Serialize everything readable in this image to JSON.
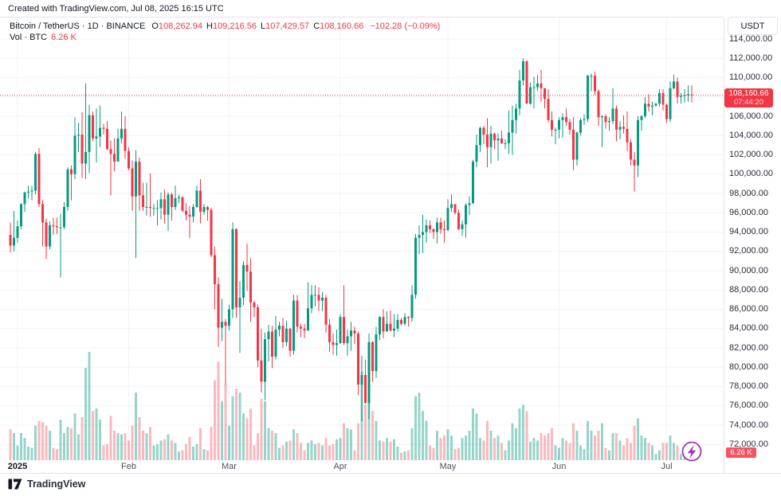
{
  "header": {
    "created_note": "Created with TradingView.com, Jul 08, 2025 16:15 UTC"
  },
  "legend": {
    "symbol_line": "Bitcoin / TetherUS · 1D · BINANCE",
    "open": {
      "label": "O",
      "value": "108,262.94"
    },
    "high": {
      "label": "H",
      "value": "109,216.56"
    },
    "low": {
      "label": "L",
      "value": "107,429.57"
    },
    "close": {
      "label": "C",
      "value": "108,160.66"
    },
    "change": "−102.28 (−0.09%)",
    "volume": {
      "label": "Vol · BTC",
      "value": "6.26 K"
    }
  },
  "price_axis": {
    "currency": "USDT"
  },
  "price_badge": {
    "price": "108,160.66",
    "countdown": "07:44:20"
  },
  "volume_badge": {
    "value": "6.26 K"
  },
  "footer": {
    "brand": "TradingView"
  },
  "colors": {
    "up": "#089981",
    "down": "#f23645",
    "vol_up": "rgba(8,153,129,0.42)",
    "vol_down": "rgba(242,54,69,0.35)",
    "grid": "#f0f3fa",
    "border": "#e0e3eb",
    "boost": "#9c36b5"
  },
  "chart_data": {
    "type": "candlestick",
    "title": "Bitcoin / TetherUS",
    "interval": "1D",
    "exchange": "BINANCE",
    "currency": "USDT",
    "start_date": "2024-12-30",
    "end_date": "2025-07-08",
    "current_price": 108160.66,
    "current": {
      "open": 108262.94,
      "high": 109216.56,
      "low": 107429.57,
      "close": 108160.66,
      "change": -102.28,
      "change_pct": -0.09,
      "volume_kbtc": 6.26
    },
    "price_axis": {
      "max": 114000,
      "min": 72000,
      "step": 2000
    },
    "time_ticks": [
      {
        "label": "2025",
        "index": 2,
        "bold": true
      },
      {
        "label": "Feb",
        "index": 33
      },
      {
        "label": "Mar",
        "index": 61
      },
      {
        "label": "Apr",
        "index": 92
      },
      {
        "label": "May",
        "index": 122
      },
      {
        "label": "Jun",
        "index": 153
      },
      {
        "label": "Jul",
        "index": 183
      }
    ],
    "units": {
      "price": "thousand USDT",
      "volume": "K BTC"
    },
    "candles": [
      [
        93.7,
        95.0,
        91.9,
        92.6,
        25
      ],
      [
        92.6,
        96.2,
        92.0,
        93.4,
        22
      ],
      [
        93.4,
        95.2,
        92.9,
        94.6,
        12
      ],
      [
        94.6,
        97.0,
        94.3,
        96.9,
        22
      ],
      [
        96.9,
        98.2,
        96.1,
        98.1,
        18
      ],
      [
        98.1,
        98.8,
        97.5,
        98.2,
        11
      ],
      [
        98.2,
        98.8,
        97.3,
        98.3,
        10
      ],
      [
        98.3,
        102.3,
        97.9,
        102.1,
        28
      ],
      [
        102.1,
        102.7,
        96.6,
        96.9,
        32
      ],
      [
        96.9,
        97.3,
        92.5,
        95.0,
        31
      ],
      [
        95.0,
        95.4,
        91.2,
        92.5,
        28
      ],
      [
        92.5,
        95.1,
        92.2,
        94.7,
        24
      ],
      [
        94.7,
        95.5,
        93.7,
        94.6,
        10
      ],
      [
        94.6,
        95.5,
        93.8,
        94.5,
        9
      ],
      [
        94.5,
        95.9,
        89.3,
        94.5,
        33
      ],
      [
        94.5,
        97.1,
        94.3,
        96.6,
        22
      ],
      [
        96.6,
        100.7,
        96.2,
        100.5,
        27
      ],
      [
        100.5,
        100.9,
        97.3,
        100.0,
        26
      ],
      [
        100.0,
        105.9,
        99.5,
        104.0,
        38
      ],
      [
        104.0,
        105.3,
        102.3,
        104.1,
        21
      ],
      [
        104.1,
        106.4,
        99.6,
        101.1,
        35
      ],
      [
        101.1,
        109.4,
        99.5,
        102.3,
        75
      ],
      [
        102.3,
        107.2,
        100.1,
        106.1,
        88
      ],
      [
        106.1,
        106.5,
        103.4,
        103.7,
        40
      ],
      [
        103.7,
        106.8,
        101.2,
        103.9,
        42
      ],
      [
        103.9,
        107.1,
        102.8,
        104.8,
        33
      ],
      [
        104.8,
        105.2,
        104.1,
        104.7,
        12
      ],
      [
        104.7,
        105.5,
        102.5,
        102.6,
        13
      ],
      [
        102.6,
        103.5,
        97.8,
        102.1,
        36
      ],
      [
        102.1,
        103.7,
        100.3,
        101.3,
        24
      ],
      [
        101.3,
        104.7,
        101.3,
        103.7,
        22
      ],
      [
        103.7,
        106.5,
        103.2,
        104.7,
        21
      ],
      [
        104.7,
        106.0,
        101.6,
        102.4,
        22
      ],
      [
        102.4,
        102.8,
        100.4,
        100.6,
        16
      ],
      [
        100.6,
        101.4,
        96.2,
        97.7,
        28
      ],
      [
        97.7,
        102.5,
        91.3,
        101.3,
        55
      ],
      [
        101.3,
        101.7,
        96.2,
        97.8,
        35
      ],
      [
        97.8,
        99.1,
        96.2,
        96.6,
        24
      ],
      [
        96.6,
        99.1,
        95.7,
        96.6,
        22
      ],
      [
        96.6,
        100.1,
        95.6,
        96.5,
        27
      ],
      [
        96.5,
        96.9,
        95.7,
        96.5,
        12
      ],
      [
        96.5,
        97.3,
        94.7,
        96.5,
        13
      ],
      [
        96.5,
        98.1,
        95.3,
        97.4,
        16
      ],
      [
        97.4,
        98.4,
        94.9,
        95.8,
        17
      ],
      [
        95.8,
        98.1,
        94.1,
        97.9,
        21
      ],
      [
        97.9,
        98.1,
        95.2,
        96.6,
        16
      ],
      [
        96.6,
        98.8,
        96.3,
        97.5,
        14
      ],
      [
        97.5,
        97.9,
        97.0,
        97.6,
        7
      ],
      [
        97.6,
        97.7,
        96.1,
        96.2,
        8
      ],
      [
        96.2,
        97.0,
        95.2,
        95.8,
        13
      ],
      [
        95.8,
        96.7,
        93.4,
        95.6,
        19
      ],
      [
        95.6,
        96.9,
        95.0,
        96.6,
        11
      ],
      [
        96.6,
        98.8,
        96.5,
        98.3,
        13
      ],
      [
        98.3,
        99.5,
        94.9,
        96.1,
        26
      ],
      [
        96.1,
        96.9,
        95.8,
        96.6,
        9
      ],
      [
        96.6,
        96.7,
        95.2,
        96.3,
        8
      ],
      [
        96.3,
        96.5,
        91.4,
        91.6,
        27
      ],
      [
        91.6,
        92.5,
        86.0,
        88.6,
        65
      ],
      [
        88.6,
        89.3,
        82.1,
        84.1,
        80
      ],
      [
        84.1,
        87.1,
        82.7,
        84.7,
        48
      ],
      [
        84.7,
        85.0,
        78.2,
        84.3,
        62
      ],
      [
        84.3,
        86.5,
        83.8,
        86.0,
        28
      ],
      [
        86.0,
        95.0,
        85.1,
        94.3,
        52
      ],
      [
        94.3,
        94.4,
        85.1,
        86.2,
        58
      ],
      [
        86.2,
        88.9,
        81.5,
        87.2,
        55
      ],
      [
        87.2,
        91.0,
        86.4,
        90.6,
        38
      ],
      [
        90.6,
        92.8,
        87.9,
        89.9,
        34
      ],
      [
        89.9,
        91.3,
        84.7,
        86.7,
        42
      ],
      [
        86.7,
        86.9,
        85.2,
        86.2,
        12
      ],
      [
        86.2,
        86.5,
        80.0,
        80.7,
        22
      ],
      [
        80.7,
        84.0,
        77.4,
        78.5,
        50
      ],
      [
        78.5,
        83.6,
        76.6,
        82.9,
        48
      ],
      [
        82.9,
        84.4,
        80.6,
        83.7,
        26
      ],
      [
        83.7,
        84.3,
        79.9,
        81.1,
        24
      ],
      [
        81.1,
        85.3,
        80.8,
        83.9,
        22
      ],
      [
        83.9,
        84.7,
        83.2,
        84.3,
        10
      ],
      [
        84.3,
        85.1,
        82.0,
        82.6,
        12
      ],
      [
        82.6,
        84.8,
        82.2,
        84.0,
        15
      ],
      [
        84.0,
        84.1,
        81.1,
        81.7,
        16
      ],
      [
        81.7,
        87.5,
        81.3,
        86.9,
        25
      ],
      [
        86.9,
        87.5,
        83.6,
        84.2,
        22
      ],
      [
        84.2,
        84.5,
        83.1,
        84.0,
        14
      ],
      [
        84.0,
        84.5,
        83.0,
        83.8,
        8
      ],
      [
        83.8,
        88.8,
        83.8,
        86.1,
        14
      ],
      [
        86.1,
        88.5,
        85.6,
        87.5,
        16
      ],
      [
        87.5,
        88.5,
        86.3,
        87.5,
        13
      ],
      [
        87.5,
        88.3,
        85.8,
        86.9,
        14
      ],
      [
        86.9,
        87.8,
        85.8,
        87.2,
        12
      ],
      [
        87.2,
        87.5,
        83.6,
        84.4,
        18
      ],
      [
        84.4,
        85.0,
        81.6,
        82.6,
        12
      ],
      [
        82.6,
        83.5,
        81.3,
        82.3,
        13
      ],
      [
        82.3,
        83.9,
        81.2,
        82.5,
        17
      ],
      [
        82.5,
        85.5,
        82.4,
        85.2,
        18
      ],
      [
        85.2,
        88.5,
        82.3,
        82.5,
        30
      ],
      [
        82.5,
        83.9,
        81.2,
        83.2,
        26
      ],
      [
        83.2,
        84.7,
        81.7,
        83.8,
        25
      ],
      [
        83.8,
        84.2,
        82.4,
        83.5,
        8
      ],
      [
        83.5,
        83.7,
        77.1,
        78.2,
        30
      ],
      [
        78.2,
        81.2,
        74.4,
        79.2,
        72
      ],
      [
        79.2,
        80.8,
        76.2,
        76.3,
        45
      ],
      [
        76.3,
        83.5,
        74.6,
        82.6,
        65
      ],
      [
        82.6,
        82.7,
        78.5,
        79.6,
        40
      ],
      [
        79.6,
        84.2,
        78.9,
        83.4,
        32
      ],
      [
        83.4,
        85.3,
        82.8,
        85.2,
        16
      ],
      [
        85.2,
        86.0,
        83.0,
        83.7,
        15
      ],
      [
        83.7,
        85.8,
        83.7,
        84.5,
        18
      ],
      [
        84.5,
        85.9,
        83.7,
        83.8,
        15
      ],
      [
        83.8,
        85.5,
        83.1,
        84.0,
        17
      ],
      [
        84.0,
        85.5,
        83.7,
        84.9,
        11
      ],
      [
        84.9,
        85.1,
        84.3,
        84.5,
        6
      ],
      [
        84.5,
        85.6,
        84.3,
        85.2,
        7
      ],
      [
        85.2,
        85.3,
        84.2,
        85.1,
        8
      ],
      [
        85.1,
        88.5,
        84.7,
        87.5,
        26
      ],
      [
        87.5,
        93.8,
        87.1,
        93.4,
        52
      ],
      [
        93.4,
        94.7,
        91.7,
        93.7,
        55
      ],
      [
        93.7,
        95.8,
        91.8,
        94.0,
        40
      ],
      [
        94.0,
        95.3,
        92.9,
        94.7,
        32
      ],
      [
        94.7,
        95.2,
        93.9,
        94.3,
        12
      ],
      [
        94.3,
        94.4,
        93.3,
        94.0,
        10
      ],
      [
        94.0,
        95.5,
        92.8,
        95.0,
        24
      ],
      [
        95.0,
        95.5,
        93.8,
        94.3,
        18
      ],
      [
        94.3,
        95.2,
        92.9,
        94.2,
        20
      ],
      [
        94.2,
        97.4,
        94.1,
        96.5,
        25
      ],
      [
        96.5,
        97.9,
        96.1,
        96.9,
        20
      ],
      [
        96.9,
        96.9,
        95.8,
        96.0,
        9
      ],
      [
        96.0,
        96.3,
        94.2,
        94.3,
        10
      ],
      [
        94.3,
        95.2,
        93.6,
        94.8,
        18
      ],
      [
        94.8,
        97.0,
        93.4,
        96.8,
        20
      ],
      [
        96.8,
        97.7,
        95.8,
        97.0,
        24
      ],
      [
        97.0,
        101.5,
        96.9,
        101.3,
        42
      ],
      [
        101.3,
        104.1,
        100.7,
        103.0,
        38
      ],
      [
        103.0,
        104.9,
        102.3,
        104.8,
        18
      ],
      [
        104.8,
        105.0,
        103.1,
        104.1,
        16
      ],
      [
        104.1,
        105.8,
        100.7,
        102.8,
        32
      ],
      [
        102.8,
        105.0,
        101.1,
        104.2,
        24
      ],
      [
        104.2,
        104.3,
        102.6,
        103.5,
        18
      ],
      [
        103.5,
        104.2,
        101.4,
        103.7,
        20
      ],
      [
        103.7,
        104.5,
        103.1,
        103.2,
        14
      ],
      [
        103.2,
        103.6,
        102.6,
        103.2,
        8
      ],
      [
        103.2,
        106.6,
        102.1,
        104.3,
        16
      ],
      [
        104.3,
        107.1,
        102.0,
        105.6,
        30
      ],
      [
        105.6,
        107.3,
        104.2,
        106.8,
        26
      ],
      [
        106.8,
        110.8,
        106.1,
        109.7,
        42
      ],
      [
        109.7,
        112.0,
        109.2,
        111.7,
        45
      ],
      [
        111.7,
        111.8,
        107.3,
        107.3,
        40
      ],
      [
        107.3,
        109.5,
        107.2,
        109.0,
        15
      ],
      [
        109.0,
        110.1,
        106.8,
        109.0,
        18
      ],
      [
        109.0,
        110.3,
        108.6,
        109.4,
        16
      ],
      [
        109.4,
        110.8,
        107.5,
        108.9,
        22
      ],
      [
        108.9,
        108.9,
        106.8,
        107.8,
        20
      ],
      [
        107.8,
        108.8,
        105.4,
        105.6,
        22
      ],
      [
        105.6,
        106.5,
        103.9,
        104.6,
        26
      ],
      [
        104.6,
        104.8,
        103.1,
        104.6,
        12
      ],
      [
        104.6,
        105.9,
        103.7,
        105.6,
        10
      ],
      [
        105.6,
        106.3,
        103.8,
        105.9,
        18
      ],
      [
        105.9,
        106.8,
        105.0,
        105.4,
        16
      ],
      [
        105.4,
        105.7,
        104.1,
        104.6,
        14
      ],
      [
        104.6,
        105.9,
        100.4,
        101.5,
        30
      ],
      [
        101.5,
        104.4,
        100.9,
        104.3,
        24
      ],
      [
        104.3,
        105.8,
        104.0,
        105.6,
        12
      ],
      [
        105.6,
        106.2,
        105.1,
        105.7,
        9
      ],
      [
        105.7,
        110.3,
        105.4,
        110.2,
        32
      ],
      [
        110.2,
        110.4,
        108.6,
        110.2,
        24
      ],
      [
        110.2,
        110.6,
        108.2,
        108.6,
        20
      ],
      [
        108.6,
        108.8,
        105.0,
        105.9,
        24
      ],
      [
        105.9,
        106.1,
        102.8,
        106.0,
        30
      ],
      [
        106.0,
        106.2,
        104.7,
        105.4,
        10
      ],
      [
        105.4,
        105.9,
        104.5,
        105.5,
        8
      ],
      [
        105.5,
        108.9,
        105.2,
        106.8,
        22
      ],
      [
        106.8,
        107.1,
        103.4,
        104.6,
        22
      ],
      [
        104.6,
        105.5,
        103.6,
        104.9,
        16
      ],
      [
        104.9,
        106.1,
        104.2,
        104.7,
        12
      ],
      [
        104.7,
        106.5,
        102.4,
        103.3,
        18
      ],
      [
        103.3,
        103.6,
        100.9,
        101.5,
        14
      ],
      [
        101.5,
        102.3,
        98.2,
        100.9,
        28
      ],
      [
        100.9,
        106.0,
        99.7,
        105.6,
        34
      ],
      [
        105.6,
        106.1,
        104.5,
        106.0,
        20
      ],
      [
        106.0,
        108.0,
        105.8,
        107.3,
        18
      ],
      [
        107.3,
        108.3,
        106.5,
        107.0,
        14
      ],
      [
        107.0,
        107.5,
        106.1,
        107.1,
        12
      ],
      [
        107.1,
        107.4,
        107.0,
        107.3,
        5
      ],
      [
        107.3,
        108.8,
        107.0,
        108.4,
        8
      ],
      [
        108.4,
        108.8,
        106.6,
        107.2,
        14
      ],
      [
        107.2,
        107.3,
        105.3,
        105.7,
        14
      ],
      [
        105.7,
        109.6,
        105.4,
        108.9,
        20
      ],
      [
        108.9,
        110.3,
        108.8,
        109.6,
        14
      ],
      [
        109.6,
        110.0,
        107.3,
        108.0,
        12
      ],
      [
        108.0,
        108.4,
        107.3,
        108.1,
        5
      ],
      [
        108.1,
        108.8,
        107.4,
        108.2,
        5
      ],
      [
        108.2,
        109.2,
        107.5,
        108.3,
        10
      ],
      [
        108.26,
        109.22,
        107.43,
        108.16,
        6.26
      ]
    ]
  }
}
